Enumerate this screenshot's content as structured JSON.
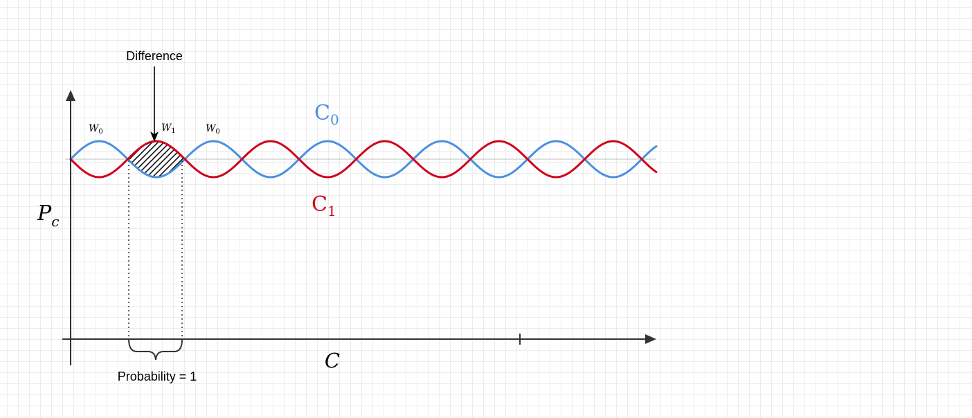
{
  "annotations": {
    "difference": "Difference",
    "probability": "Probability = 1"
  },
  "labels": {
    "y_axis": {
      "base": "P",
      "sub": "c"
    },
    "x_axis": "C",
    "w0_left": {
      "base": "W",
      "sub": "0"
    },
    "w1": {
      "base": "W",
      "sub": "1"
    },
    "w0_right": {
      "base": "W",
      "sub": "0"
    },
    "c0": {
      "base": "C",
      "sub": "0"
    },
    "c1": {
      "base": "C",
      "sub": "1"
    }
  },
  "colors": {
    "c0": "#4a90e2",
    "c1": "#d0021b",
    "axis": "#333333",
    "baseline": "#bdbdbd"
  },
  "icons": [
    "arrow-down-icon",
    "curly-brace-icon",
    "hatch-pattern"
  ]
}
